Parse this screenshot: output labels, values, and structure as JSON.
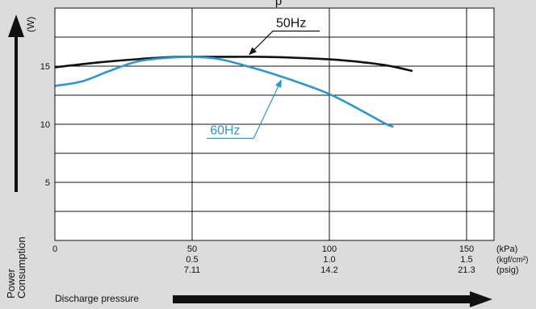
{
  "chart_data": {
    "type": "line",
    "title_fragment": "p",
    "ylabel": "Power\nConsumption",
    "yunit": "(W)",
    "xlabel": "Discharge pressure",
    "ylim": [
      0,
      20
    ],
    "xlim": [
      0,
      160
    ],
    "yticks": [
      5,
      10,
      15
    ],
    "grid": true,
    "x_ticks": [
      {
        "kpa": "0",
        "kgf": "",
        "psig": ""
      },
      {
        "kpa": "50",
        "kgf": "0.5",
        "psig": "7.11"
      },
      {
        "kpa": "100",
        "kgf": "1.0",
        "psig": "14.2"
      },
      {
        "kpa": "150",
        "kgf": "1.5",
        "psig": "21.3"
      }
    ],
    "x_units": [
      "(kPa)",
      "(kgf/cm²)",
      "(psig)"
    ],
    "series": [
      {
        "name": "50Hz",
        "color": "#111111",
        "x": [
          0,
          15,
          30,
          45,
          60,
          75,
          90,
          105,
          120,
          130
        ],
        "y": [
          14.9,
          15.3,
          15.6,
          15.8,
          15.8,
          15.8,
          15.7,
          15.5,
          15.1,
          14.6
        ]
      },
      {
        "name": "60Hz",
        "color": "#2a96d4",
        "x": [
          0,
          10,
          20,
          30,
          40,
          50,
          60,
          70,
          80,
          90,
          100,
          110,
          120,
          123
        ],
        "y": [
          13.3,
          13.7,
          14.6,
          15.4,
          15.7,
          15.8,
          15.6,
          15.0,
          14.3,
          13.5,
          12.6,
          11.4,
          10.1,
          9.8
        ]
      }
    ],
    "annotations": [
      {
        "text": "50Hz",
        "series": 0,
        "point_x": 70
      },
      {
        "text": "60Hz",
        "series": 1,
        "point_x": 83
      }
    ]
  }
}
